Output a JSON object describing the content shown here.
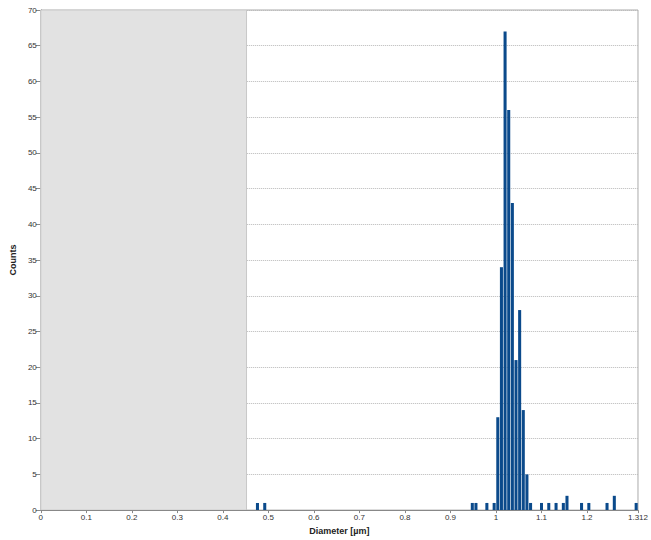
{
  "chart_data": {
    "type": "histogram",
    "xlabel": "Diameter [µm]",
    "ylabel": "Counts",
    "bins": [
      0,
      0.008,
      0.016,
      0.024,
      0.032,
      0.04,
      0.048,
      0.056,
      0.064,
      0.072,
      0.08,
      0.088,
      0.096,
      0.104,
      0.112,
      0.12,
      0.128,
      0.136,
      0.144,
      0.152,
      0.16,
      0.168,
      0.176,
      0.184,
      0.192,
      0.2,
      0.208,
      0.216,
      0.224,
      0.232,
      0.24,
      0.248,
      0.256,
      0.264,
      0.272,
      0.28,
      0.288,
      0.296,
      0.304,
      0.312,
      0.32,
      0.328,
      0.336,
      0.344,
      0.352,
      0.36,
      0.368,
      0.376,
      0.384,
      0.392,
      0.4,
      0.408,
      0.416,
      0.424,
      0.432,
      0.44,
      0.448,
      0.456,
      0.464,
      0.472,
      0.48,
      0.488,
      0.496,
      0.504,
      0.512,
      0.52,
      0.528,
      0.536,
      0.544,
      0.552,
      0.56,
      0.568,
      0.576,
      0.584,
      0.592,
      0.6,
      0.608,
      0.616,
      0.624,
      0.632,
      0.64,
      0.648,
      0.656,
      0.664,
      0.672,
      0.68,
      0.688,
      0.696,
      0.704,
      0.712,
      0.72,
      0.728,
      0.736,
      0.744,
      0.752,
      0.76,
      0.768,
      0.776,
      0.784,
      0.792,
      0.8,
      0.808,
      0.816,
      0.824,
      0.832,
      0.84,
      0.848,
      0.856,
      0.864,
      0.872,
      0.88,
      0.888,
      0.896,
      0.904,
      0.912,
      0.92,
      0.928,
      0.936,
      0.944,
      0.952,
      0.96,
      0.968,
      0.976,
      0.984,
      0.992,
      1,
      1.008,
      1.016,
      1.024,
      1.032,
      1.04,
      1.048,
      1.056,
      1.064,
      1.072,
      1.08,
      1.088,
      1.096,
      1.104,
      1.112,
      1.12,
      1.128,
      1.136,
      1.144,
      1.152,
      1.16,
      1.168,
      1.176,
      1.184,
      1.192,
      1.2,
      1.208,
      1.216,
      1.224,
      1.232,
      1.24,
      1.248,
      1.256,
      1.264,
      1.272,
      1.28,
      1.288,
      1.296,
      1.304,
      1.312
    ],
    "values": [
      0,
      0,
      0,
      0,
      0,
      0,
      0,
      0,
      0,
      0,
      0,
      0,
      0,
      0,
      0,
      0,
      0,
      0,
      0,
      0,
      0,
      0,
      0,
      0,
      0,
      0,
      0,
      0,
      0,
      0,
      0,
      0,
      0,
      0,
      0,
      0,
      0,
      0,
      0,
      0,
      0,
      0,
      0,
      0,
      0,
      0,
      0,
      0,
      0,
      0,
      0,
      0,
      0,
      0,
      0,
      0,
      0,
      0,
      0,
      1,
      0,
      1,
      0,
      0,
      0,
      0,
      0,
      0,
      0,
      0,
      0,
      0,
      0,
      0,
      0,
      0,
      0,
      0,
      0,
      0,
      0,
      0,
      0,
      0,
      0,
      0,
      0,
      0,
      0,
      0,
      0,
      0,
      0,
      0,
      0,
      0,
      0,
      0,
      0,
      0,
      0,
      0,
      0,
      0,
      0,
      0,
      0,
      0,
      0,
      0,
      0,
      0,
      0,
      0,
      0,
      0,
      0,
      0,
      1,
      1,
      0,
      0,
      1,
      0,
      1,
      13,
      34,
      67,
      56,
      43,
      21,
      28,
      14,
      5,
      1,
      0,
      0,
      1,
      0,
      1,
      0,
      1,
      0,
      1,
      2,
      0,
      0,
      0,
      1,
      0,
      1,
      0,
      0,
      0,
      0,
      1,
      0,
      2,
      0,
      0,
      0,
      0,
      0,
      1
    ],
    "color": "#0b4a8b",
    "shaded_region": [
      0,
      0.452
    ],
    "xlim": [
      0,
      1.312
    ],
    "xticks": [
      0,
      0.1,
      0.2,
      0.3,
      0.4,
      0.5,
      0.6,
      0.7,
      0.8,
      0.9,
      1,
      1.1,
      1.2,
      1.312
    ],
    "ylim": [
      0,
      70
    ],
    "yticks": [
      0,
      5,
      10,
      15,
      20,
      25,
      30,
      35,
      40,
      45,
      50,
      55,
      60,
      65,
      70
    ],
    "grid": true
  }
}
